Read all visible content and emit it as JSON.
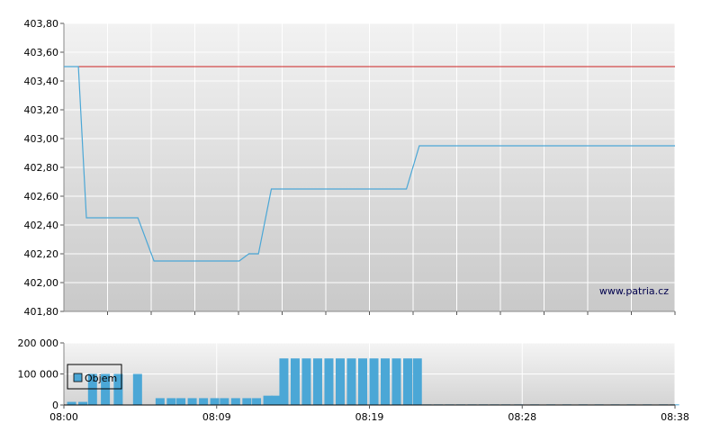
{
  "watermark": "www.patria.cz",
  "colors": {
    "price_line": "#4ba7d6",
    "reference_line": "#cc2222",
    "volume_bar": "#4ba7d6",
    "grid": "#ffffff",
    "panel_top": "#f2f2f2",
    "panel_bottom": "#c9c9c9"
  },
  "chart_data": [
    {
      "type": "line",
      "name": "price",
      "ylim": [
        401.8,
        403.8
      ],
      "y_ticks": [
        "401,80",
        "402,00",
        "402,20",
        "402,40",
        "402,60",
        "402,80",
        "403,00",
        "403,20",
        "403,40",
        "403,60",
        "403,80"
      ],
      "y_tick_values": [
        401.8,
        402.0,
        402.2,
        402.4,
        402.6,
        402.8,
        403.0,
        403.2,
        403.4,
        403.6,
        403.8
      ],
      "xlim_minutes": [
        0,
        38
      ],
      "reference_value": 403.5,
      "points": [
        [
          0,
          403.5
        ],
        [
          0.9,
          403.5
        ],
        [
          1.4,
          402.45
        ],
        [
          4.6,
          402.45
        ],
        [
          5.6,
          402.15
        ],
        [
          10.9,
          402.15
        ],
        [
          11.5,
          402.2
        ],
        [
          12.1,
          402.2
        ],
        [
          12.9,
          402.65
        ],
        [
          21.3,
          402.65
        ],
        [
          22.1,
          402.95
        ],
        [
          38,
          402.95
        ]
      ],
      "grid": true
    },
    {
      "type": "bar",
      "name": "volume",
      "legend": "Objem",
      "legend_position": "top-left",
      "ylim": [
        0,
        200000
      ],
      "y_ticks": [
        "0",
        "100 000",
        "200 000"
      ],
      "y_tick_values": [
        0,
        100000,
        200000
      ],
      "x_ticks": [
        "08:00",
        "08:09",
        "08:19",
        "08:28",
        "08:38"
      ],
      "x_tick_minutes": [
        0,
        9.5,
        19,
        28.5,
        38
      ],
      "xlim_minutes": [
        0,
        38
      ],
      "bars": [
        {
          "x": 0.2,
          "v": 10000
        },
        {
          "x": 0.9,
          "v": 10000
        },
        {
          "x": 1.5,
          "v": 100000
        },
        {
          "x": 2.3,
          "v": 100000
        },
        {
          "x": 3.1,
          "v": 100000
        },
        {
          "x": 4.3,
          "v": 100000
        },
        {
          "x": 5.7,
          "v": 22000
        },
        {
          "x": 6.4,
          "v": 22000
        },
        {
          "x": 7.0,
          "v": 22000
        },
        {
          "x": 7.7,
          "v": 22000
        },
        {
          "x": 8.4,
          "v": 22000
        },
        {
          "x": 9.1,
          "v": 22000
        },
        {
          "x": 9.7,
          "v": 22000
        },
        {
          "x": 10.4,
          "v": 22000
        },
        {
          "x": 11.1,
          "v": 22000
        },
        {
          "x": 11.7,
          "v": 22000
        },
        {
          "x": 12.4,
          "v": 30000
        },
        {
          "x": 12.9,
          "v": 30000
        },
        {
          "x": 13.4,
          "v": 150000
        },
        {
          "x": 14.1,
          "v": 150000
        },
        {
          "x": 14.8,
          "v": 150000
        },
        {
          "x": 15.5,
          "v": 150000
        },
        {
          "x": 16.2,
          "v": 150000
        },
        {
          "x": 16.9,
          "v": 150000
        },
        {
          "x": 17.6,
          "v": 150000
        },
        {
          "x": 18.3,
          "v": 150000
        },
        {
          "x": 19.0,
          "v": 150000
        },
        {
          "x": 19.7,
          "v": 150000
        },
        {
          "x": 20.4,
          "v": 150000
        },
        {
          "x": 21.1,
          "v": 150000
        },
        {
          "x": 21.7,
          "v": 150000
        },
        {
          "x": 22.3,
          "v": 2000
        },
        {
          "x": 23.0,
          "v": 2000
        },
        {
          "x": 23.7,
          "v": 2000
        },
        {
          "x": 24.4,
          "v": 2000
        },
        {
          "x": 25.1,
          "v": 2000
        },
        {
          "x": 25.8,
          "v": 2000
        },
        {
          "x": 26.5,
          "v": 2000
        },
        {
          "x": 27.2,
          "v": 2000
        },
        {
          "x": 28.0,
          "v": 2000
        },
        {
          "x": 29.0,
          "v": 2000
        },
        {
          "x": 30.0,
          "v": 2000
        },
        {
          "x": 31.0,
          "v": 2000
        },
        {
          "x": 32.0,
          "v": 2000
        },
        {
          "x": 33.0,
          "v": 2000
        },
        {
          "x": 34.0,
          "v": 2000
        },
        {
          "x": 35.0,
          "v": 2000
        },
        {
          "x": 36.0,
          "v": 2000
        },
        {
          "x": 37.0,
          "v": 2000
        },
        {
          "x": 37.7,
          "v": 2000
        }
      ]
    }
  ]
}
